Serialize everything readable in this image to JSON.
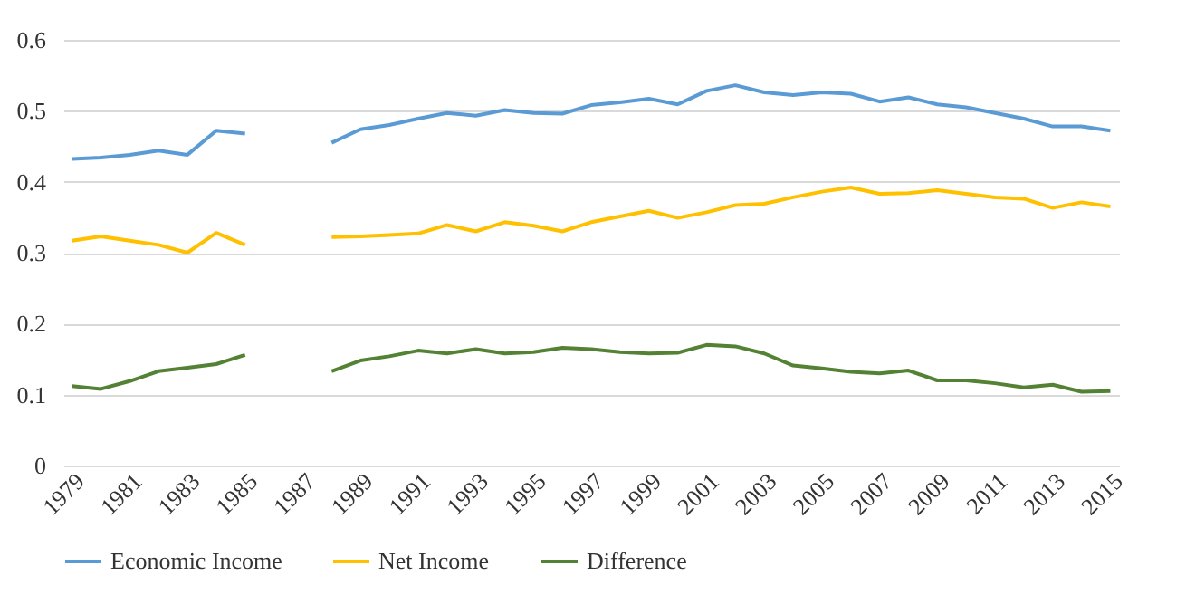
{
  "chart_data": {
    "type": "line",
    "categories": [
      "1979",
      null,
      "1981",
      null,
      "1983",
      null,
      "1985",
      null,
      "1987",
      null,
      "1989",
      null,
      "1991",
      null,
      "1993",
      null,
      "1995",
      null,
      "1997",
      null,
      "1999",
      null,
      "2001",
      null,
      "2003",
      null,
      "2005",
      null,
      "2007",
      null,
      "2009",
      null,
      "2011",
      null,
      "2013",
      null,
      "2015"
    ],
    "series": [
      {
        "name": "Economic Income",
        "color": "#5b9bd5",
        "values": [
          0.432,
          0.434,
          0.438,
          0.444,
          0.438,
          0.472,
          0.468,
          null,
          null,
          0.455,
          0.474,
          0.48,
          0.489,
          0.497,
          0.493,
          0.501,
          0.497,
          0.496,
          0.508,
          0.512,
          0.517,
          0.509,
          0.528,
          0.536,
          0.526,
          0.522,
          0.526,
          0.524,
          0.513,
          0.519,
          0.509,
          0.505,
          0.497,
          0.489,
          0.478,
          0.478,
          0.472
        ]
      },
      {
        "name": "Net Income",
        "color": "#ffc000",
        "values": [
          0.317,
          0.323,
          0.317,
          0.311,
          0.3,
          0.328,
          0.311,
          null,
          null,
          0.322,
          0.323,
          0.325,
          0.327,
          0.339,
          0.33,
          0.343,
          0.338,
          0.33,
          0.343,
          0.351,
          0.359,
          0.349,
          0.357,
          0.367,
          0.369,
          0.378,
          0.386,
          0.392,
          0.383,
          0.384,
          0.388,
          0.383,
          0.378,
          0.376,
          0.363,
          0.371,
          0.365
        ]
      },
      {
        "name": "Difference",
        "color": "#548235",
        "values": [
          0.112,
          0.108,
          0.119,
          0.133,
          0.138,
          0.143,
          0.156,
          null,
          null,
          0.133,
          0.148,
          0.154,
          0.162,
          0.158,
          0.164,
          0.158,
          0.16,
          0.166,
          0.164,
          0.16,
          0.158,
          0.159,
          0.17,
          0.168,
          0.158,
          0.141,
          0.137,
          0.132,
          0.13,
          0.134,
          0.12,
          0.12,
          0.116,
          0.11,
          0.114,
          0.104,
          0.105
        ]
      }
    ],
    "ylim": [
      0,
      0.6
    ],
    "yticks": [
      0,
      0.1,
      0.2,
      0.3,
      0.4,
      0.5,
      0.6
    ],
    "grid": "y",
    "legend": "bottom"
  }
}
